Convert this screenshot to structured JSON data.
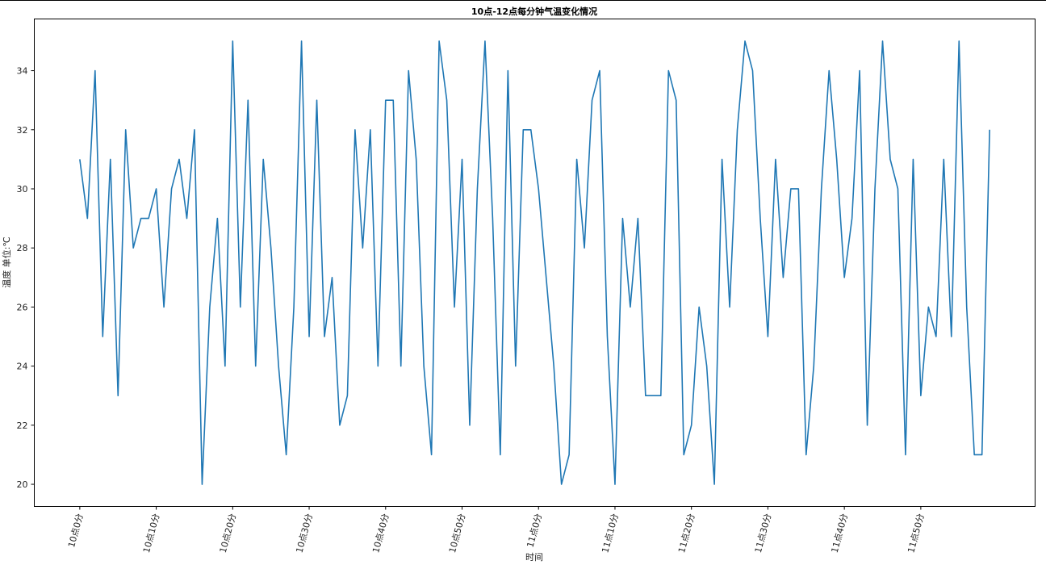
{
  "chart_data": {
    "type": "line",
    "title": "10点-12点每分钟气温变化情况",
    "xlabel": "时间",
    "ylabel": "温度 单位:℃",
    "ylim": [
      19.25,
      35.75
    ],
    "yticks": [
      20,
      22,
      24,
      26,
      28,
      30,
      32,
      34
    ],
    "xticks": [
      {
        "x": 0,
        "label": "10点0分"
      },
      {
        "x": 10,
        "label": "10点10分"
      },
      {
        "x": 20,
        "label": "10点20分"
      },
      {
        "x": 30,
        "label": "10点30分"
      },
      {
        "x": 40,
        "label": "10点40分"
      },
      {
        "x": 50,
        "label": "10点50分"
      },
      {
        "x": 60,
        "label": "11点0分"
      },
      {
        "x": 70,
        "label": "11点10分"
      },
      {
        "x": 80,
        "label": "11点20分"
      },
      {
        "x": 90,
        "label": "11点30分"
      },
      {
        "x": 100,
        "label": "11点40分"
      },
      {
        "x": 110,
        "label": "11点50分"
      }
    ],
    "xlim": [
      -5.95,
      124.95
    ],
    "grid": false,
    "line_color": "#1f77b4",
    "series": [
      {
        "values": [
          31,
          29,
          34,
          25,
          31,
          23,
          32,
          28,
          29,
          29,
          30,
          26,
          30,
          31,
          29,
          32,
          20,
          26,
          29,
          24,
          35,
          26,
          33,
          24,
          31,
          28,
          24,
          21,
          26,
          35,
          25,
          33,
          25,
          27,
          22,
          23,
          32,
          28,
          32,
          24,
          33,
          33,
          24,
          34,
          31,
          24,
          21,
          35,
          33,
          26,
          31,
          22,
          30,
          35,
          29,
          21,
          34,
          24,
          32,
          32,
          30,
          27,
          24,
          20,
          21,
          31,
          28,
          33,
          34,
          25,
          20,
          29,
          26,
          29,
          23,
          23,
          23,
          34,
          33,
          21,
          22,
          26,
          24,
          20,
          31,
          26,
          32,
          35,
          34,
          29,
          25,
          31,
          27,
          30,
          30,
          21,
          24,
          30,
          34,
          31,
          27,
          29,
          34,
          22,
          30,
          35,
          31,
          30,
          21,
          31,
          23,
          26,
          25,
          31,
          25,
          35,
          26,
          21,
          21,
          32
        ]
      }
    ]
  }
}
